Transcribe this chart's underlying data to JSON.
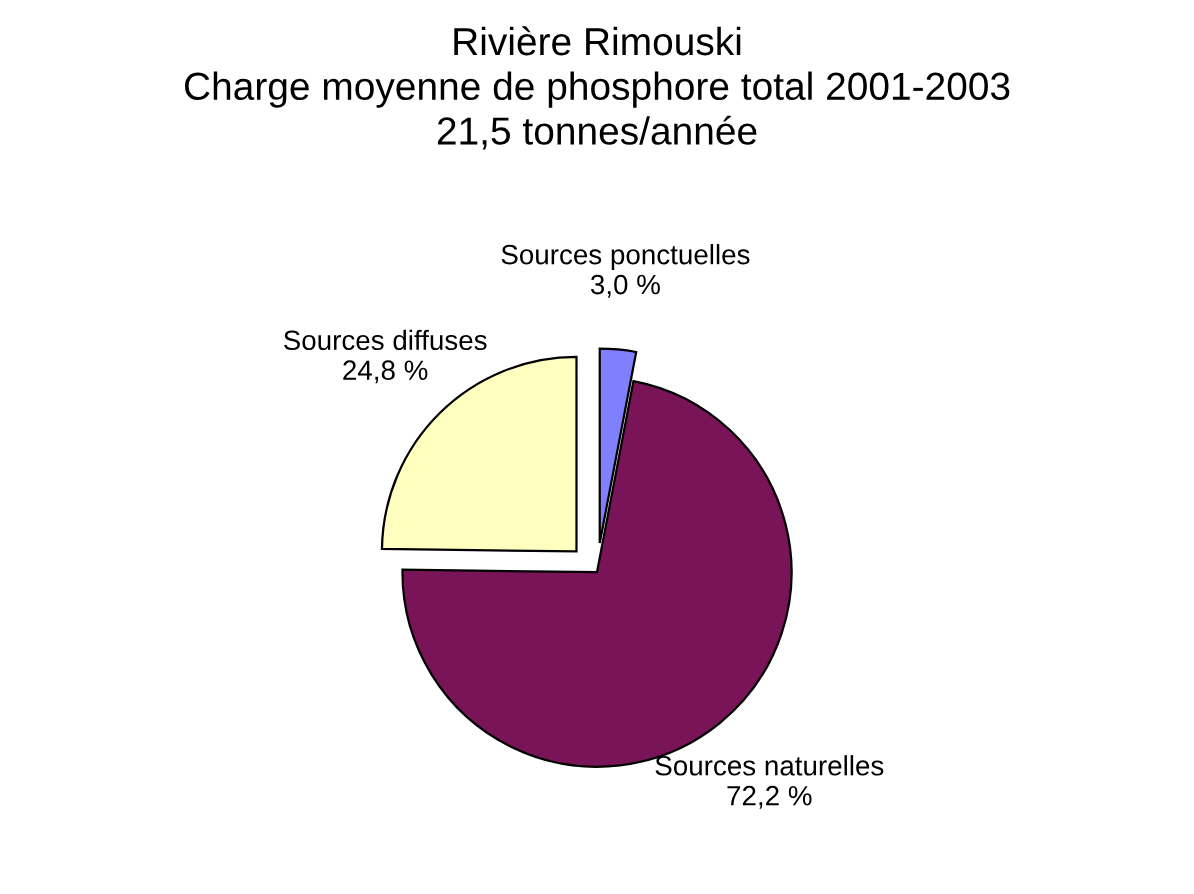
{
  "chart_data": {
    "type": "pie",
    "title": "Rivière Rimouski\nCharge moyenne de phosphore total 2001-2003\n21,5 tonnes/année",
    "categories": [
      "Sources ponctuelles",
      "Sources naturelles",
      "Sources diffuses"
    ],
    "values": [
      3.0,
      72.2,
      24.8
    ],
    "value_labels": [
      "3,0 %",
      "72,2 %",
      "24,8 %"
    ],
    "colors": [
      "#8080ff",
      "#7a1458",
      "#ffffc0"
    ],
    "legend": false
  }
}
